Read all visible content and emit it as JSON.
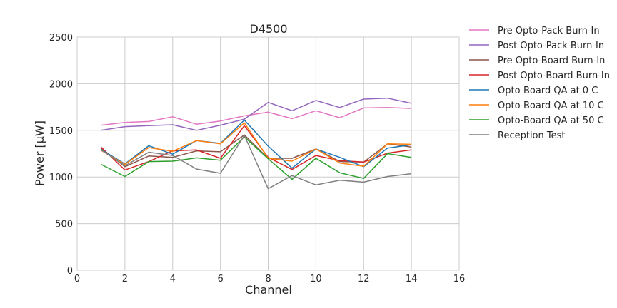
{
  "chart_data": {
    "type": "line",
    "title": "D4500",
    "xlabel": "Channel",
    "ylabel": "Power [μW]",
    "xlim": [
      0,
      16
    ],
    "ylim": [
      0,
      2500
    ],
    "xticks": [
      "0",
      "2",
      "4",
      "6",
      "8",
      "10",
      "12",
      "14",
      "16"
    ],
    "yticks": [
      "0",
      "500",
      "1000",
      "1500",
      "2000",
      "2500"
    ],
    "grid": true,
    "legend_position": "outside-right",
    "x": [
      1,
      2,
      3,
      4,
      5,
      6,
      7,
      8,
      9,
      10,
      11,
      12,
      13,
      14
    ],
    "series": [
      {
        "name": "Pre Opto-Pack Burn-In",
        "color": "#e377c2",
        "values": [
          1555,
          1585,
          1595,
          1645,
          1565,
          1600,
          1655,
          1695,
          1625,
          1710,
          1635,
          1740,
          1745,
          1735
        ]
      },
      {
        "name": "Post Opto-Pack Burn-In",
        "color": "#9467bd",
        "values": [
          1500,
          1540,
          1550,
          1560,
          1500,
          1555,
          1620,
          1800,
          1710,
          1820,
          1745,
          1835,
          1845,
          1790
        ]
      },
      {
        "name": "Pre Opto-Board Burn-In",
        "color": "#8c564b",
        "values": [
          1310,
          1110,
          1225,
          1210,
          1280,
          1270,
          1450,
          1200,
          1200,
          1300,
          1165,
          1160,
          1355,
          1320
        ]
      },
      {
        "name": "Post Opto-Board Burn-In",
        "color": "#d62728",
        "values": [
          1320,
          1075,
          1165,
          1280,
          1290,
          1200,
          1550,
          1210,
          1080,
          1230,
          1175,
          1160,
          1255,
          1290
        ]
      },
      {
        "name": "Opto-Board QA at 0 C",
        "color": "#1f77b4",
        "values": [
          1295,
          1140,
          1335,
          1245,
          1390,
          1360,
          1610,
          1330,
          1095,
          1300,
          1210,
          1110,
          1310,
          1345
        ]
      },
      {
        "name": "Opto-Board QA at 10 C",
        "color": "#ff7f0e",
        "values": [
          1285,
          1135,
          1315,
          1275,
          1390,
          1355,
          1580,
          1200,
          1170,
          1300,
          1150,
          1115,
          1355,
          1350
        ]
      },
      {
        "name": "Opto-Board QA at 50 C",
        "color": "#2ca02c",
        "values": [
          1135,
          1005,
          1165,
          1170,
          1205,
          1180,
          1430,
          1195,
          975,
          1200,
          1045,
          985,
          1250,
          1210
        ]
      },
      {
        "name": "Reception Test",
        "color": "#7f7f7f",
        "values": [
          1290,
          1120,
          1265,
          1230,
          1085,
          1040,
          1445,
          875,
          1015,
          915,
          965,
          945,
          1005,
          1035
        ]
      }
    ]
  }
}
